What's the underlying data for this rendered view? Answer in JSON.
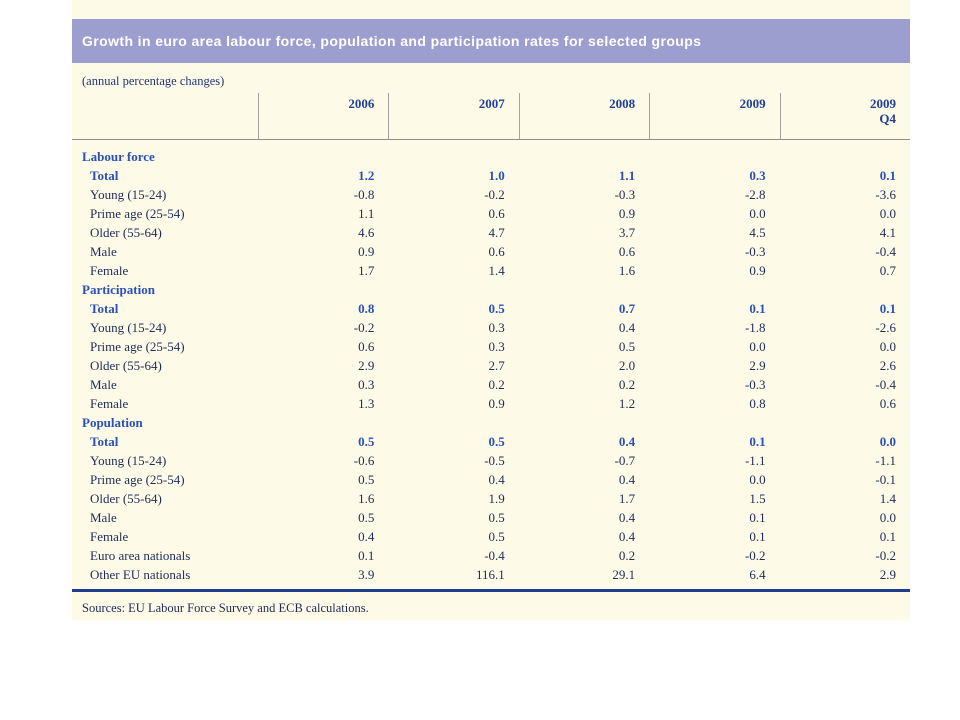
{
  "title": "Growth in euro area labour force, population and participation rates for selected groups",
  "subtitle": "(annual percentage changes)",
  "sources": "Sources: EU Labour Force Survey and ECB calculations.",
  "colors": {
    "title_bar_bg": "#9D9ED0",
    "title_text": "#FFFFFF",
    "sheet_bg": "#FDFBE8",
    "accent_blue": "#2B50B8",
    "text_navy": "#1E2B58",
    "header_navy": "#203F94",
    "thick_rule_navy": "#1F3D8C"
  },
  "table": {
    "columns": [
      {
        "label": "2006",
        "sublabel": ""
      },
      {
        "label": "2007",
        "sublabel": ""
      },
      {
        "label": "2008",
        "sublabel": ""
      },
      {
        "label": "2009",
        "sublabel": ""
      },
      {
        "label": "2009",
        "sublabel": "Q4"
      }
    ],
    "rows": [
      {
        "label": "Labour force",
        "type": "section",
        "values": [
          "",
          "",
          "",
          "",
          ""
        ]
      },
      {
        "label": "Total",
        "type": "total",
        "values": [
          "1.2",
          "1.0",
          "1.1",
          "0.3",
          "0.1"
        ]
      },
      {
        "label": "Young (15-24)",
        "type": "item",
        "values": [
          "-0.8",
          "-0.2",
          "-0.3",
          "-2.8",
          "-3.6"
        ]
      },
      {
        "label": "Prime age (25-54)",
        "type": "item",
        "values": [
          "1.1",
          "0.6",
          "0.9",
          "0.0",
          "0.0"
        ]
      },
      {
        "label": "Older (55-64)",
        "type": "item",
        "values": [
          "4.6",
          "4.7",
          "3.7",
          "4.5",
          "4.1"
        ]
      },
      {
        "label": "Male",
        "type": "item",
        "values": [
          "0.9",
          "0.6",
          "0.6",
          "-0.3",
          "-0.4"
        ]
      },
      {
        "label": "Female",
        "type": "item",
        "values": [
          "1.7",
          "1.4",
          "1.6",
          "0.9",
          "0.7"
        ]
      },
      {
        "label": "Participation",
        "type": "section",
        "values": [
          "",
          "",
          "",
          "",
          ""
        ]
      },
      {
        "label": "Total",
        "type": "total",
        "values": [
          "0.8",
          "0.5",
          "0.7",
          "0.1",
          "0.1"
        ]
      },
      {
        "label": "Young (15-24)",
        "type": "item",
        "values": [
          "-0.2",
          "0.3",
          "0.4",
          "-1.8",
          "-2.6"
        ]
      },
      {
        "label": "Prime age (25-54)",
        "type": "item",
        "values": [
          "0.6",
          "0.3",
          "0.5",
          "0.0",
          "0.0"
        ]
      },
      {
        "label": "Older (55-64)",
        "type": "item",
        "values": [
          "2.9",
          "2.7",
          "2.0",
          "2.9",
          "2.6"
        ]
      },
      {
        "label": "Male",
        "type": "item",
        "values": [
          "0.3",
          "0.2",
          "0.2",
          "-0.3",
          "-0.4"
        ]
      },
      {
        "label": "Female",
        "type": "item",
        "values": [
          "1.3",
          "0.9",
          "1.2",
          "0.8",
          "0.6"
        ]
      },
      {
        "label": "Population",
        "type": "section",
        "values": [
          "",
          "",
          "",
          "",
          ""
        ]
      },
      {
        "label": "Total",
        "type": "total",
        "values": [
          "0.5",
          "0.5",
          "0.4",
          "0.1",
          "0.0"
        ]
      },
      {
        "label": "Young (15-24)",
        "type": "item",
        "values": [
          "-0.6",
          "-0.5",
          "-0.7",
          "-1.1",
          "-1.1"
        ]
      },
      {
        "label": "Prime age (25-54)",
        "type": "item",
        "values": [
          "0.5",
          "0.4",
          "0.4",
          "0.0",
          "-0.1"
        ]
      },
      {
        "label": "Older (55-64)",
        "type": "item",
        "values": [
          "1.6",
          "1.9",
          "1.7",
          "1.5",
          "1.4"
        ]
      },
      {
        "label": "Male",
        "type": "item",
        "values": [
          "0.5",
          "0.5",
          "0.4",
          "0.1",
          "0.0"
        ]
      },
      {
        "label": "Female",
        "type": "item",
        "values": [
          "0.4",
          "0.5",
          "0.4",
          "0.1",
          "0.1"
        ]
      },
      {
        "label": "Euro area nationals",
        "type": "item",
        "values": [
          "0.1",
          "-0.4",
          "0.2",
          "-0.2",
          "-0.2"
        ]
      },
      {
        "label": "Other EU nationals",
        "type": "item",
        "values": [
          "3.9",
          "116.1",
          "29.1",
          "6.4",
          "2.9"
        ]
      }
    ]
  }
}
